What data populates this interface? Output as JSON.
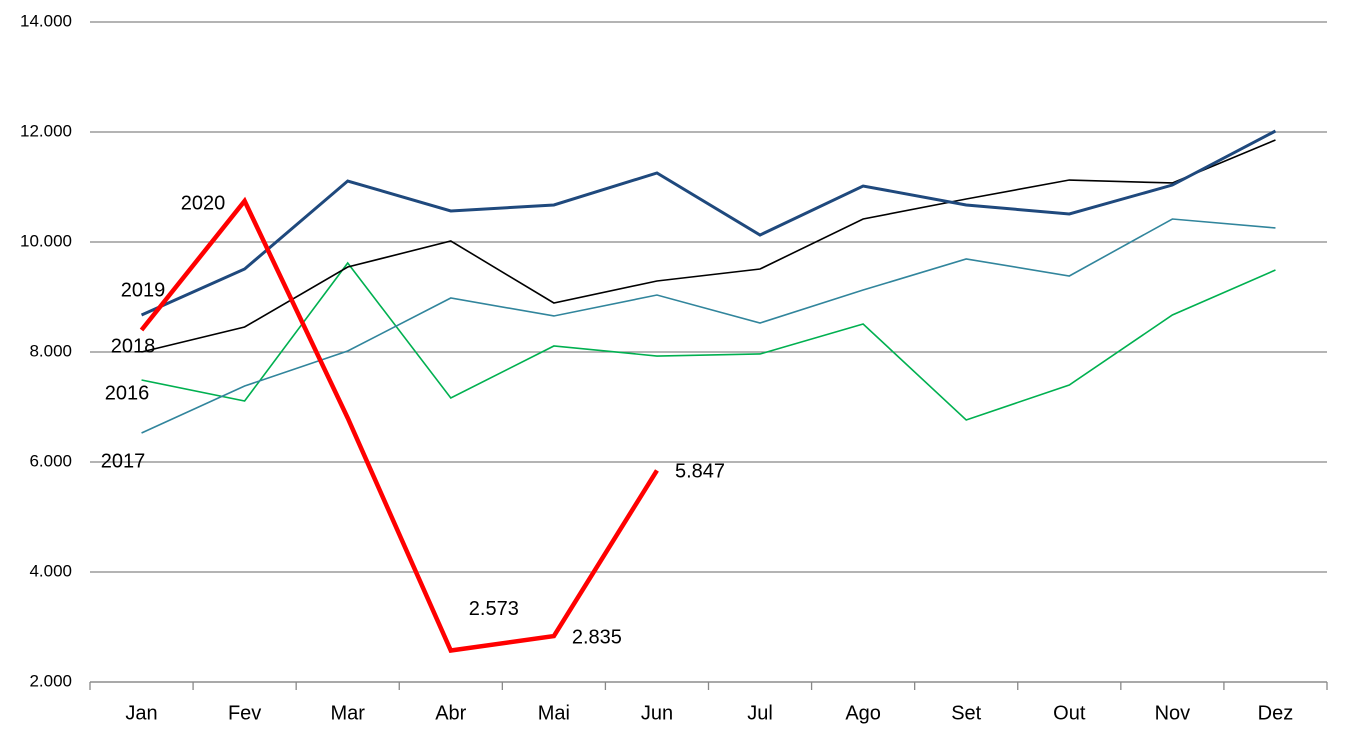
{
  "chart_data": {
    "type": "line",
    "categories": [
      "Jan",
      "Fev",
      "Mar",
      "Abr",
      "Mai",
      "Jun",
      "Jul",
      "Ago",
      "Set",
      "Out",
      "Nov",
      "Dez"
    ],
    "series": [
      {
        "name": "2016",
        "color": "#00b050",
        "values": [
          7491,
          7109,
          9618,
          7164,
          8109,
          7927,
          7964,
          8509,
          6764,
          7400,
          8673,
          9491
        ]
      },
      {
        "name": "2017",
        "color": "#31859c",
        "values": [
          6527,
          7382,
          8018,
          8982,
          8655,
          9036,
          8527,
          9127,
          9691,
          9382,
          10418,
          10255
        ]
      },
      {
        "name": "2018",
        "color": "#000000",
        "values": [
          8000,
          8455,
          9545,
          10018,
          8891,
          9291,
          9509,
          10418,
          10782,
          11127,
          11073,
          11855
        ]
      },
      {
        "name": "2019",
        "color": "#1f497d",
        "values": [
          8673,
          9509,
          11109,
          10564,
          10673,
          11255,
          10127,
          11018,
          10673,
          10509,
          11036,
          12018
        ]
      },
      {
        "name": "2020",
        "color": "#ff0000",
        "values": [
          8400,
          10745,
          6800,
          2573,
          2835,
          5847,
          null,
          null,
          null,
          null,
          null,
          null
        ],
        "value_labels": [
          null,
          null,
          null,
          "2.573",
          "2.835",
          "5.847",
          null,
          null,
          null,
          null,
          null,
          null
        ]
      }
    ],
    "ylim": [
      2000,
      14000
    ],
    "yticks": [
      {
        "value": 2000,
        "label": "2.000"
      },
      {
        "value": 4000,
        "label": "4.000"
      },
      {
        "value": 6000,
        "label": "6.000"
      },
      {
        "value": 8000,
        "label": "8.000"
      },
      {
        "value": 10000,
        "label": "10.000"
      },
      {
        "value": 12000,
        "label": "12.000"
      },
      {
        "value": 14000,
        "label": "14.000"
      }
    ],
    "grid": true
  }
}
